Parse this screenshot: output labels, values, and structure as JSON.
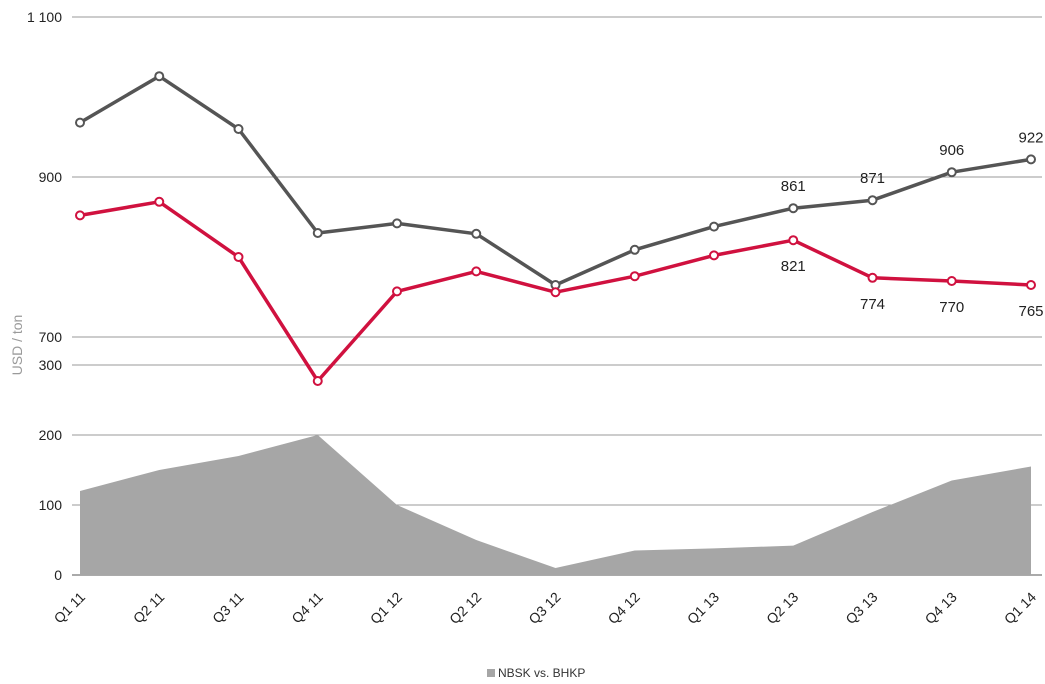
{
  "chart_data": {
    "type": "line",
    "title": "",
    "xlabel": "",
    "ylabel": "USD / ton",
    "grid": true,
    "categories": [
      "Q1 11",
      "Q2 11",
      "Q3 11",
      "Q4 11",
      "Q1 12",
      "Q2 12",
      "Q3 12",
      "Q4 12",
      "Q1 13",
      "Q2 13",
      "Q3 13",
      "Q4 13",
      "Q1 14"
    ],
    "upper_axis": {
      "ticks": [
        700,
        900,
        1100
      ],
      "tick_labels": [
        "700",
        "900",
        "1 100"
      ],
      "ylim": [
        640,
        1100
      ]
    },
    "lower_axis": {
      "ticks": [
        0,
        100,
        200,
        300
      ],
      "tick_labels": [
        "0",
        "100",
        "200",
        "300"
      ],
      "ylim": [
        0,
        300
      ]
    },
    "series": [
      {
        "name": "",
        "color": "#555555",
        "axis": "upper",
        "values": [
          968,
          1026,
          960,
          830,
          842,
          829,
          765,
          809,
          838,
          861,
          871,
          906,
          922
        ]
      },
      {
        "name": "",
        "color": "#d0113f",
        "axis": "upper",
        "values": [
          852,
          869,
          800,
          645,
          757,
          782,
          756,
          776,
          802,
          821,
          774,
          770,
          765
        ]
      },
      {
        "name": "NBSK vs. BHKP",
        "color": "#a6a6a6",
        "axis": "lower",
        "type": "area",
        "values": [
          120,
          150,
          170,
          200,
          100,
          50,
          10,
          35,
          38,
          42,
          90,
          135,
          155
        ]
      }
    ],
    "annotations": [
      {
        "series": 0,
        "index": 9,
        "text": "861"
      },
      {
        "series": 0,
        "index": 10,
        "text": "871"
      },
      {
        "series": 0,
        "index": 11,
        "text": "906"
      },
      {
        "series": 0,
        "index": 12,
        "text": "922"
      },
      {
        "series": 1,
        "index": 9,
        "text": "821"
      },
      {
        "series": 1,
        "index": 10,
        "text": "774"
      },
      {
        "series": 1,
        "index": 11,
        "text": "770"
      },
      {
        "series": 1,
        "index": 12,
        "text": "765"
      }
    ],
    "legend": {
      "position": "bottom",
      "entries": [
        "NBSK vs. BHKP"
      ]
    }
  }
}
